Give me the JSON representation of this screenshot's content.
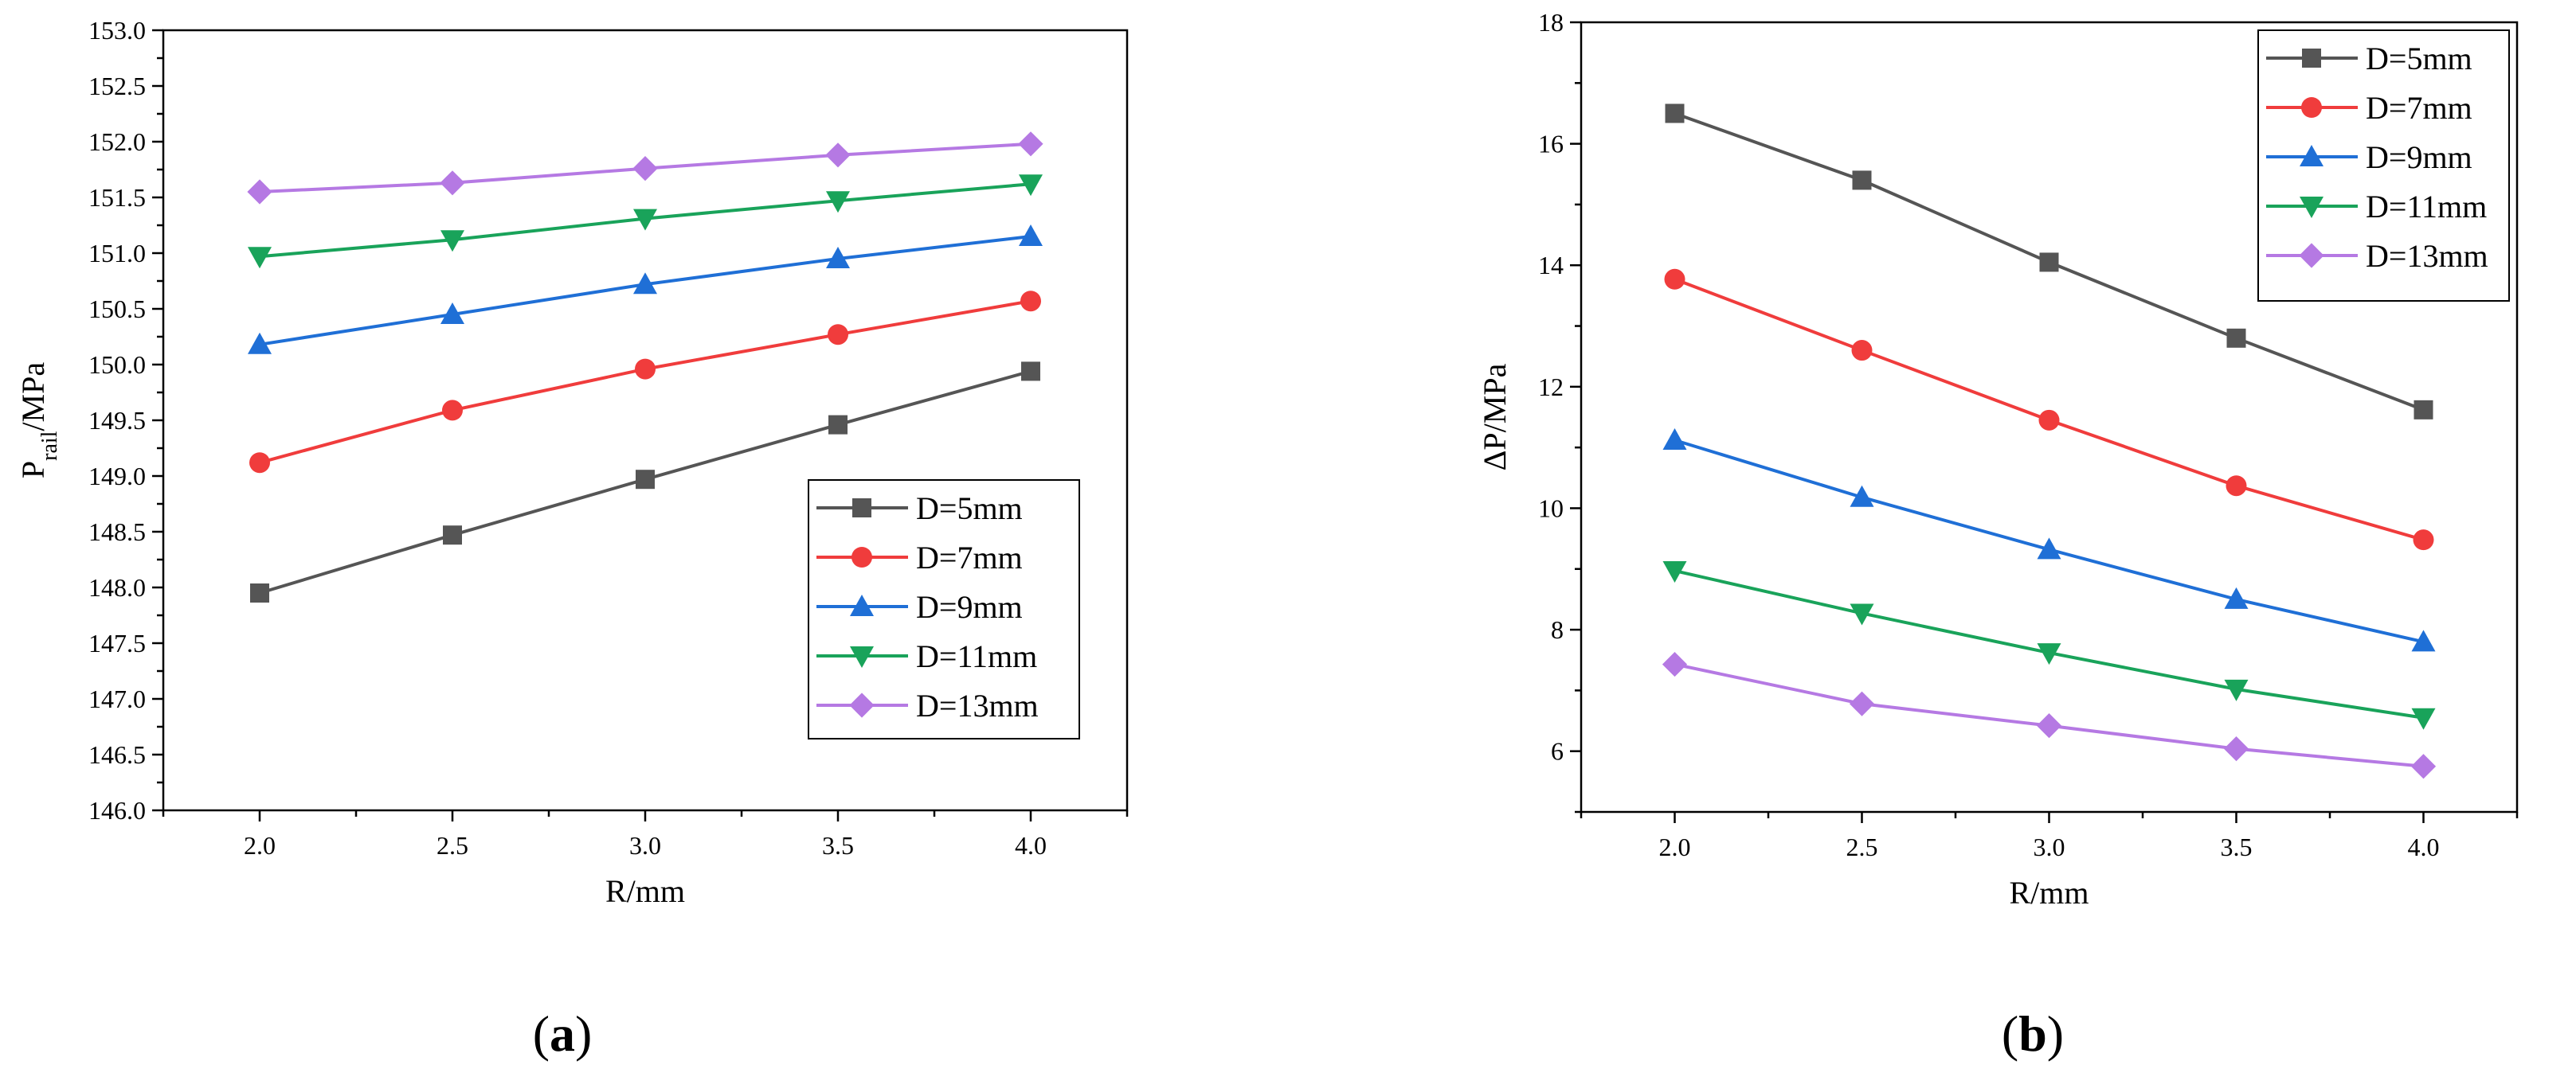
{
  "figure": {
    "panel_labels": [
      "a",
      "b"
    ]
  },
  "chart_data": [
    {
      "type": "line",
      "panel": "a",
      "x": [
        2.0,
        2.5,
        3.0,
        3.5,
        4.0
      ],
      "xticks": [
        "2.0",
        "2.5",
        "3.0",
        "3.5",
        "4.0"
      ],
      "yticks": [
        "146.0",
        "146.5",
        "147.0",
        "147.5",
        "148.0",
        "148.5",
        "149.0",
        "149.5",
        "150.0",
        "150.5",
        "151.0",
        "151.5",
        "152.0",
        "152.5",
        "153.0"
      ],
      "xlim": [
        1.75,
        4.25
      ],
      "ylim": [
        146.0,
        153.0
      ],
      "xlabel": "R/mm",
      "ylabel_main": "P",
      "ylabel_sub": "rail",
      "ylabel_tail": "/MPa",
      "legend_position": "bottom-right",
      "grid": false,
      "series": [
        {
          "name": "D=5mm",
          "color": "#555555",
          "marker": "square",
          "values": [
            147.95,
            148.47,
            148.97,
            149.46,
            149.94
          ]
        },
        {
          "name": "D=7mm",
          "color": "#f03c3c",
          "marker": "circle",
          "values": [
            149.12,
            149.59,
            149.96,
            150.27,
            150.57
          ]
        },
        {
          "name": "D=9mm",
          "color": "#1f6fd6",
          "marker": "triangle-up",
          "values": [
            150.18,
            150.45,
            150.72,
            150.95,
            151.15
          ]
        },
        {
          "name": "D=11mm",
          "color": "#19a35a",
          "marker": "triangle-down",
          "values": [
            150.97,
            151.12,
            151.31,
            151.47,
            151.62
          ]
        },
        {
          "name": "D=13mm",
          "color": "#b579e3",
          "marker": "diamond",
          "values": [
            151.55,
            151.63,
            151.76,
            151.88,
            151.98
          ]
        }
      ]
    },
    {
      "type": "line",
      "panel": "b",
      "x": [
        2.0,
        2.5,
        3.0,
        3.5,
        4.0
      ],
      "xticks": [
        "2.0",
        "2.5",
        "3.0",
        "3.5",
        "4.0"
      ],
      "yticks": [
        "6",
        "8",
        "10",
        "12",
        "14",
        "16",
        "18"
      ],
      "xlim": [
        1.75,
        4.25
      ],
      "ylim": [
        5.0,
        18.0
      ],
      "xlabel": "R/mm",
      "ylabel_main": "ΔP/MPa",
      "ylabel_sub": "",
      "ylabel_tail": "",
      "legend_position": "top-right",
      "grid": false,
      "series": [
        {
          "name": "D=5mm",
          "color": "#555555",
          "marker": "square",
          "values": [
            16.5,
            15.4,
            14.05,
            12.8,
            11.62
          ]
        },
        {
          "name": "D=7mm",
          "color": "#f03c3c",
          "marker": "circle",
          "values": [
            13.77,
            12.6,
            11.45,
            10.37,
            9.48
          ]
        },
        {
          "name": "D=9mm",
          "color": "#1f6fd6",
          "marker": "triangle-up",
          "values": [
            11.12,
            10.18,
            9.32,
            8.5,
            7.8
          ]
        },
        {
          "name": "D=11mm",
          "color": "#19a35a",
          "marker": "triangle-down",
          "values": [
            8.97,
            8.27,
            7.62,
            7.02,
            6.55
          ]
        },
        {
          "name": "D=13mm",
          "color": "#b579e3",
          "marker": "diamond",
          "values": [
            7.43,
            6.78,
            6.42,
            6.04,
            5.75
          ]
        }
      ]
    }
  ]
}
